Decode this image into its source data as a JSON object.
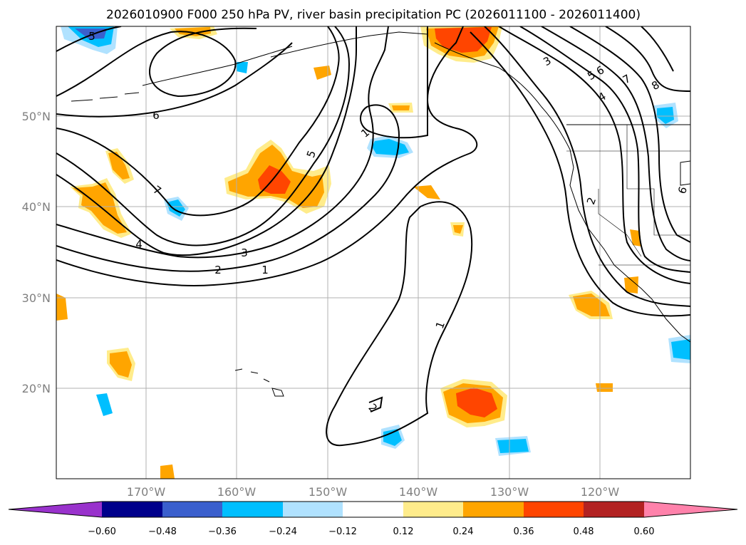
{
  "title": "2026010900 F000 250 hPa PV, river basin precipitation PC (2026011100 - 2026011400)",
  "map": {
    "lat_labels": [
      "50°N",
      "40°N",
      "30°N",
      "20°N"
    ],
    "lon_labels": [
      "170°W",
      "160°W",
      "150°W",
      "140°W",
      "130°W",
      "120°W"
    ],
    "contour_labels": [
      "5",
      "6",
      "7",
      "4",
      "3",
      "2",
      "1",
      "5",
      "1",
      "1",
      "2",
      "3",
      "5",
      "6",
      "7",
      "8",
      "4",
      "2",
      "6"
    ],
    "colors": {
      "contour": "#000000",
      "grid": "#b0b0b0",
      "coast": "#000000"
    }
  },
  "colorbar": {
    "tick_labels": [
      "−0.60",
      "−0.48",
      "−0.36",
      "−0.24",
      "−0.12",
      "0.12",
      "0.24",
      "0.36",
      "0.48",
      "0.60"
    ],
    "bins": [
      {
        "color": "#9932cc"
      },
      {
        "color": "#00008b"
      },
      {
        "color": "#3a5fcd"
      },
      {
        "color": "#00bfff"
      },
      {
        "color": "#b0e2ff"
      },
      {
        "color": "#ffffff"
      },
      {
        "color": "#ffec8b"
      },
      {
        "color": "#ffa500"
      },
      {
        "color": "#ff4500"
      },
      {
        "color": "#b22222"
      },
      {
        "color": "#ff82ab"
      }
    ]
  }
}
